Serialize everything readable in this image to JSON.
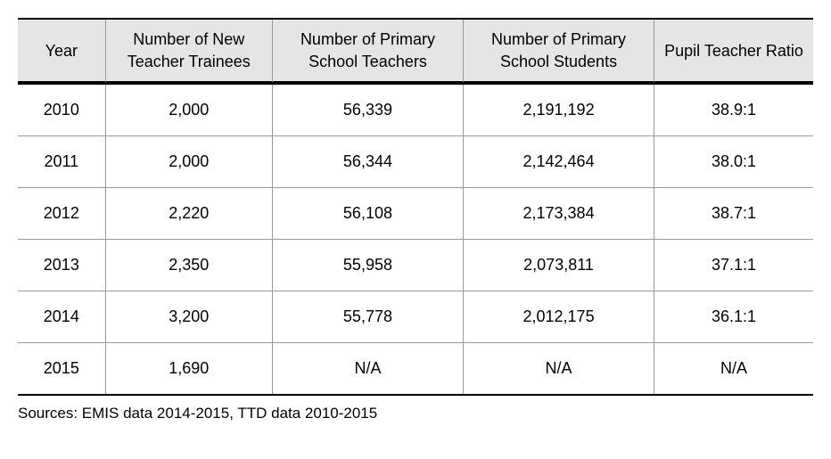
{
  "table": {
    "columns": [
      "Year",
      "Number of New Teacher Trainees",
      "Number of Primary School Teachers",
      "Number of Primary School Students",
      "Pupil Teacher Ratio"
    ],
    "rows": [
      {
        "year": "2010",
        "trainees": "2,000",
        "teachers": "56,339",
        "students": "2,191,192",
        "ratio": "38.9:1"
      },
      {
        "year": "2011",
        "trainees": "2,000",
        "teachers": "56,344",
        "students": "2,142,464",
        "ratio": "38.0:1"
      },
      {
        "year": "2012",
        "trainees": "2,220",
        "teachers": "56,108",
        "students": "2,173,384",
        "ratio": "38.7:1"
      },
      {
        "year": "2013",
        "trainees": "2,350",
        "teachers": "55,958",
        "students": "2,073,811",
        "ratio": "37.1:1"
      },
      {
        "year": "2014",
        "trainees": "3,200",
        "teachers": "55,778",
        "students": "2,012,175",
        "ratio": "36.1:1"
      },
      {
        "year": "2015",
        "trainees": "1,690",
        "teachers": "N/A",
        "students": "N/A",
        "ratio": "N/A"
      }
    ],
    "header_bg": "#e5e5e5",
    "border_color_dark": "#000000",
    "border_color_light": "#999999",
    "background_color": "#ffffff",
    "font_size": 18,
    "font_family": "Arial, sans-serif"
  },
  "sources": "Sources: EMIS data 2014-2015, TTD data 2010-2015"
}
